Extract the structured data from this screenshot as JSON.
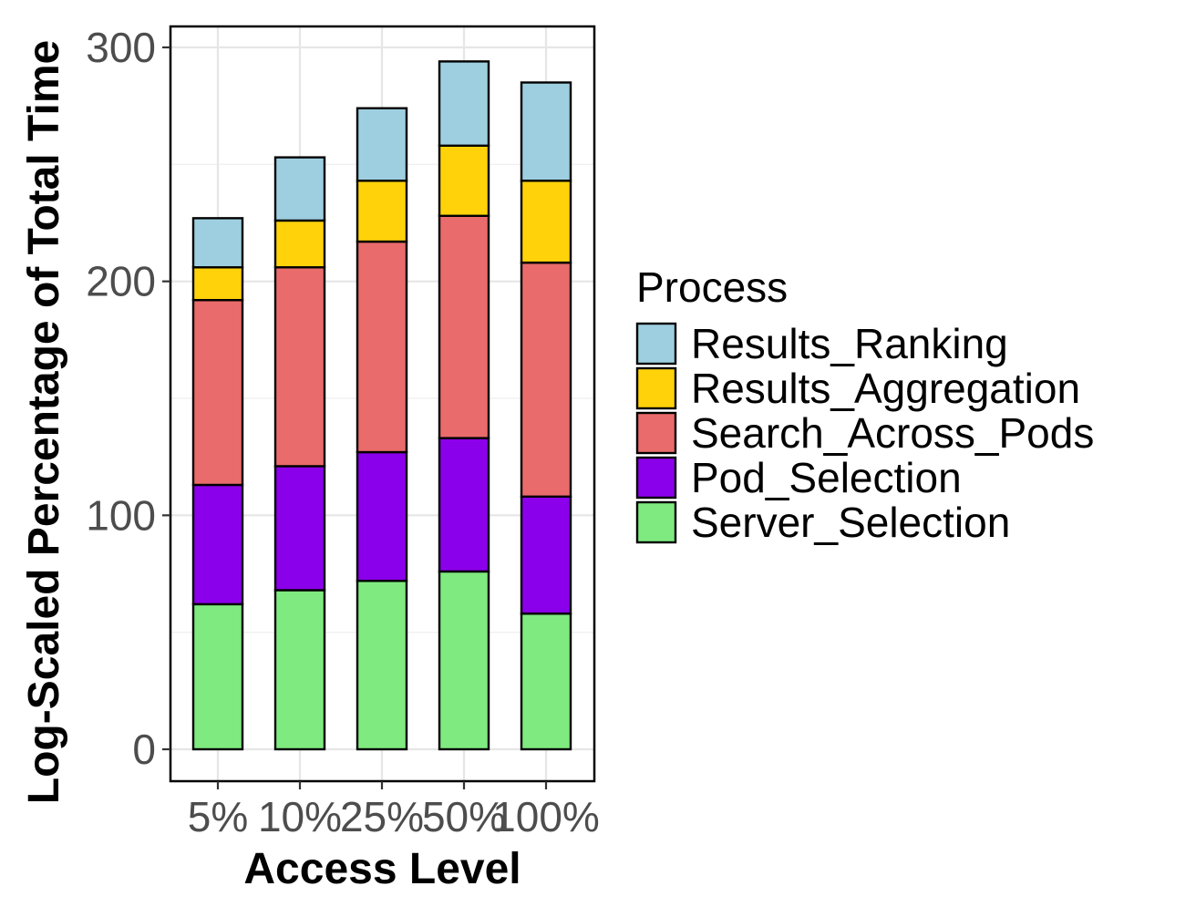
{
  "chart_data": {
    "type": "bar",
    "stacked": true,
    "title": "",
    "xlabel": "Access Level",
    "ylabel": "Log-Scaled Percentage of Total Time",
    "ylim": [
      -14,
      310
    ],
    "y_ticks": [
      0,
      100,
      200,
      300
    ],
    "grid": true,
    "legend_title": "Process",
    "legend_position": "right",
    "categories": [
      "5%",
      "10%",
      "25%",
      "50%",
      "100%"
    ],
    "series": [
      {
        "name": "Server_Selection",
        "color": "#7fea7f",
        "values": [
          62,
          68,
          72,
          76,
          58
        ]
      },
      {
        "name": "Pod_Selection",
        "color": "#8b00ea",
        "values": [
          51,
          53,
          55,
          57,
          50
        ]
      },
      {
        "name": "Search_Across_Pods",
        "color": "#ea6b6b",
        "values": [
          79,
          85,
          90,
          95,
          100
        ]
      },
      {
        "name": "Results_Aggregation",
        "color": "#ffd20a",
        "values": [
          14,
          20,
          26,
          30,
          35
        ]
      },
      {
        "name": "Results_Ranking",
        "color": "#9ecfe0",
        "values": [
          21,
          27,
          31,
          36,
          42
        ]
      }
    ]
  }
}
